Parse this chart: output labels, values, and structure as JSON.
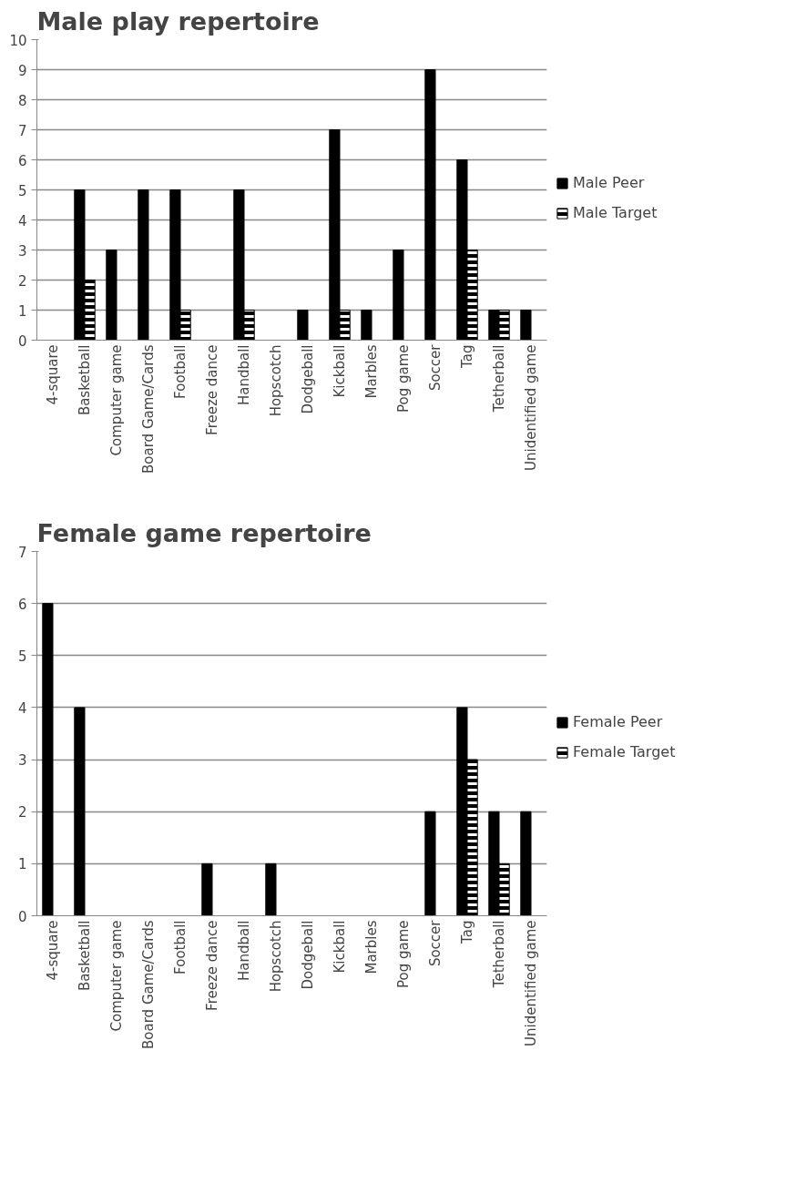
{
  "chart_data": [
    {
      "type": "bar",
      "title": "Male play repertoire",
      "categories": [
        "4-square",
        "Basketball",
        "Computer game",
        "Board Game/Cards",
        "Football",
        "Freeze dance",
        "Handball",
        "Hopscotch",
        "Dodgeball",
        "Kickball",
        "Marbles",
        "Pog game",
        "Soccer",
        "Tag",
        "Tetherball",
        "Unidentified game"
      ],
      "series": [
        {
          "name": "Male Peer",
          "color": "#000000",
          "values": [
            0,
            5,
            3,
            5,
            5,
            0,
            5,
            0,
            1,
            7,
            1,
            3,
            9,
            6,
            1,
            1
          ]
        },
        {
          "name": "Male Target",
          "color": "#000000",
          "values": [
            0,
            2,
            0,
            0,
            1,
            0,
            1,
            0,
            0,
            1,
            0,
            0,
            0,
            3,
            1,
            0
          ]
        }
      ],
      "ylim": [
        0,
        10
      ],
      "yticks": [
        0,
        1,
        2,
        3,
        4,
        5,
        6,
        7,
        8,
        9,
        10
      ],
      "grid": "y",
      "legend": "right"
    },
    {
      "type": "bar",
      "title": "Female game repertoire",
      "categories": [
        "4-square",
        "Basketball",
        "Computer game",
        "Board Game/Cards",
        "Football",
        "Freeze dance",
        "Handball",
        "Hopscotch",
        "Dodgeball",
        "Kickball",
        "Marbles",
        "Pog game",
        "Soccer",
        "Tag",
        "Tetherball",
        "Unidentified game"
      ],
      "series": [
        {
          "name": "Female Peer",
          "color": "#000000",
          "values": [
            6,
            4,
            0,
            0,
            0,
            1,
            0,
            1,
            0,
            0,
            0,
            0,
            2,
            4,
            2,
            2
          ]
        },
        {
          "name": "Female Target",
          "color": "#000000",
          "values": [
            0,
            0,
            0,
            0,
            0,
            0,
            0,
            0,
            0,
            0,
            0,
            0,
            0,
            3,
            1,
            0
          ]
        }
      ],
      "ylim": [
        0,
        7
      ],
      "yticks": [
        0,
        1,
        2,
        3,
        4,
        5,
        6,
        7
      ],
      "grid": "y",
      "legend": "right"
    }
  ]
}
